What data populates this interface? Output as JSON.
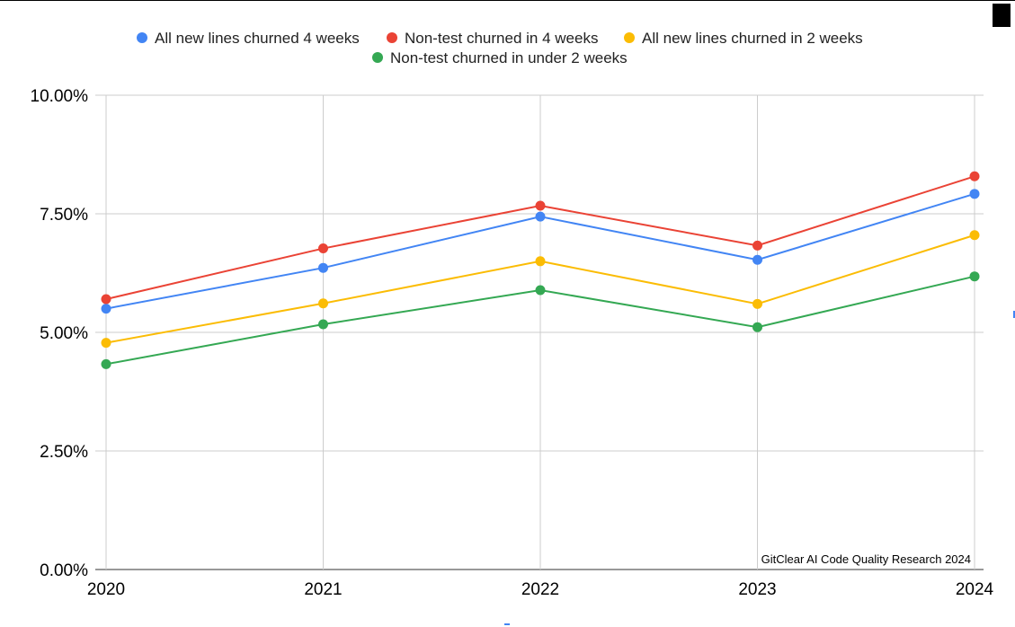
{
  "chart_data": {
    "type": "line",
    "categories": [
      "2020",
      "2021",
      "2022",
      "2023",
      "2024"
    ],
    "series": [
      {
        "name": "All new lines churned 4 weeks",
        "color": "#4285F4",
        "values": [
          5.5,
          6.36,
          7.44,
          6.53,
          7.92
        ]
      },
      {
        "name": "Non-test churned in 4 weeks",
        "color": "#EA4335",
        "values": [
          5.7,
          6.77,
          7.67,
          6.83,
          8.29
        ]
      },
      {
        "name": "All new lines churned in 2 weeks",
        "color": "#FBBC04",
        "values": [
          4.78,
          5.61,
          6.5,
          5.6,
          7.05
        ]
      },
      {
        "name": "Non-test churned in under 2 weeks",
        "color": "#34A853",
        "values": [
          4.33,
          5.17,
          5.89,
          5.11,
          6.18
        ]
      }
    ],
    "y_ticks": [
      "0.00%",
      "2.50%",
      "5.00%",
      "7.50%",
      "10.00%"
    ],
    "ylim": [
      0,
      10
    ],
    "grid": true,
    "legend_position": "top",
    "annotation": "GitClear AI Code Quality Research 2024"
  }
}
